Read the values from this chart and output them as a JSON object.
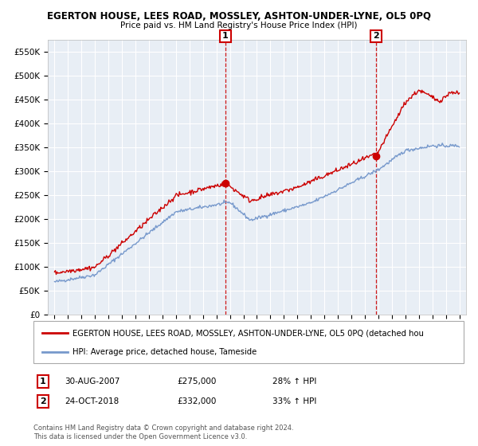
{
  "title": "EGERTON HOUSE, LEES ROAD, MOSSLEY, ASHTON-UNDER-LYNE, OL5 0PQ",
  "subtitle": "Price paid vs. HM Land Registry's House Price Index (HPI)",
  "ylim": [
    0,
    575000
  ],
  "yticks": [
    0,
    50000,
    100000,
    150000,
    200000,
    250000,
    300000,
    350000,
    400000,
    450000,
    500000,
    550000
  ],
  "ytick_labels": [
    "£0",
    "£50K",
    "£100K",
    "£150K",
    "£200K",
    "£250K",
    "£300K",
    "£350K",
    "£400K",
    "£450K",
    "£500K",
    "£550K"
  ],
  "sale1_year": 2007.67,
  "sale1_price": 275000,
  "sale2_year": 2018.83,
  "sale2_price": 332000,
  "red_color": "#cc0000",
  "blue_color": "#7799cc",
  "bg_color": "#ffffff",
  "plot_bg_color": "#e8eef5",
  "grid_color": "#ffffff",
  "legend_line1": "EGERTON HOUSE, LEES ROAD, MOSSLEY, ASHTON-UNDER-LYNE, OL5 0PQ (detached hou",
  "legend_line2": "HPI: Average price, detached house, Tameside",
  "annotation1_date": "30-AUG-2007",
  "annotation1_price": "£275,000",
  "annotation1_hpi": "28% ↑ HPI",
  "annotation2_date": "24-OCT-2018",
  "annotation2_price": "£332,000",
  "annotation2_hpi": "33% ↑ HPI",
  "footer": "Contains HM Land Registry data © Crown copyright and database right 2024.\nThis data is licensed under the Open Government Licence v3.0."
}
